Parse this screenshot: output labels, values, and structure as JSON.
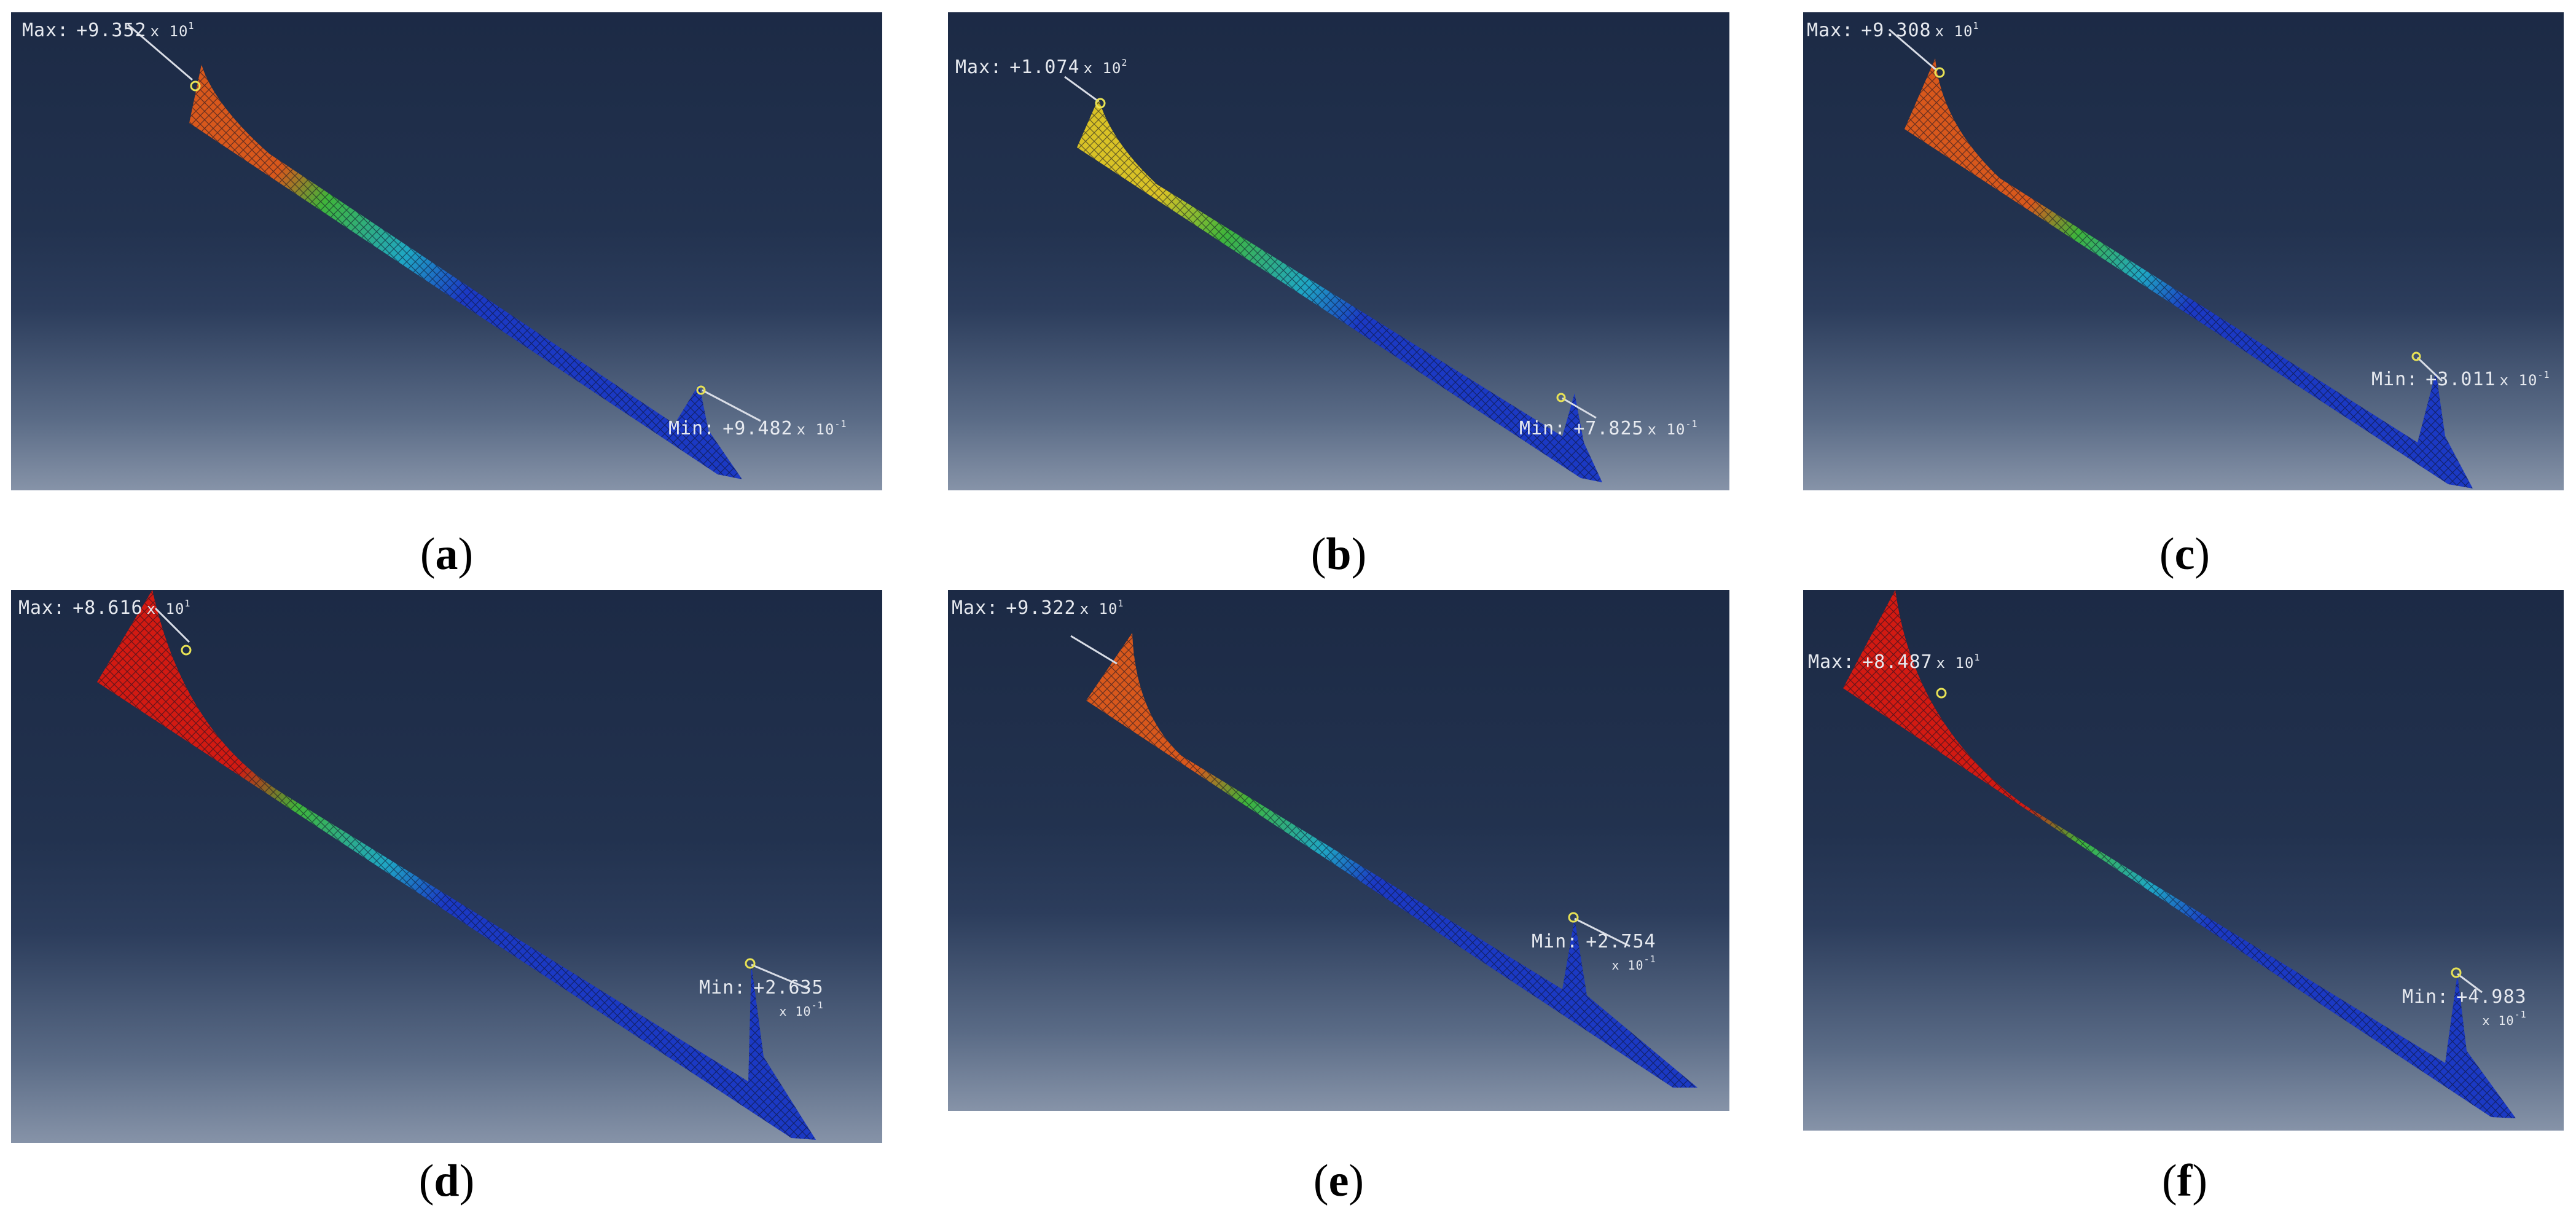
{
  "panels": [
    {
      "id": "a",
      "caption_letter": "a",
      "max_label": "Max:",
      "max_mantissa": "+9.352",
      "max_base": "x 10",
      "max_exp": "1",
      "min_label": "Min:",
      "min_mantissa": "+9.482",
      "min_base": "x 10",
      "min_exp": "-1"
    },
    {
      "id": "b",
      "caption_letter": "b",
      "max_label": "Max:",
      "max_mantissa": "+1.074",
      "max_base": "x 10",
      "max_exp": "2",
      "min_label": "Min:",
      "min_mantissa": "+7.825",
      "min_base": "x 10",
      "min_exp": "-1"
    },
    {
      "id": "c",
      "caption_letter": "c",
      "max_label": "Max:",
      "max_mantissa": "+9.308",
      "max_base": "x 10",
      "max_exp": "1",
      "min_label": "Min:",
      "min_mantissa": "+3.011",
      "min_base": "x 10",
      "min_exp": "-1"
    },
    {
      "id": "d",
      "caption_letter": "d",
      "max_label": "Max:",
      "max_mantissa": "+8.616",
      "max_base": "x 10",
      "max_exp": "1",
      "min_label": "Min:",
      "min_mantissa": "+2.635",
      "min_base": "x 10",
      "min_exp": "-1"
    },
    {
      "id": "e",
      "caption_letter": "e",
      "max_label": "Max:",
      "max_mantissa": "+9.322",
      "max_base": "x 10",
      "max_exp": "1",
      "min_label": "Min:",
      "min_mantissa": "+2.754",
      "min_base": "x 10",
      "min_exp": "-1"
    },
    {
      "id": "f",
      "caption_letter": "f",
      "max_label": "Max:",
      "max_mantissa": "+8.487",
      "max_base": "x 10",
      "max_exp": "1",
      "min_label": "Min:",
      "min_mantissa": "+4.983",
      "min_base": "x 10",
      "min_exp": "-1"
    }
  ],
  "colors": {
    "red": "#d21a12",
    "orange": "#d8581c",
    "yellow": "#d9c226",
    "green": "#3fb43a",
    "cyan": "#1fa6c4",
    "blue": "#1b39c4",
    "mesh": "#0b0f24",
    "marker": "#e8e255"
  }
}
